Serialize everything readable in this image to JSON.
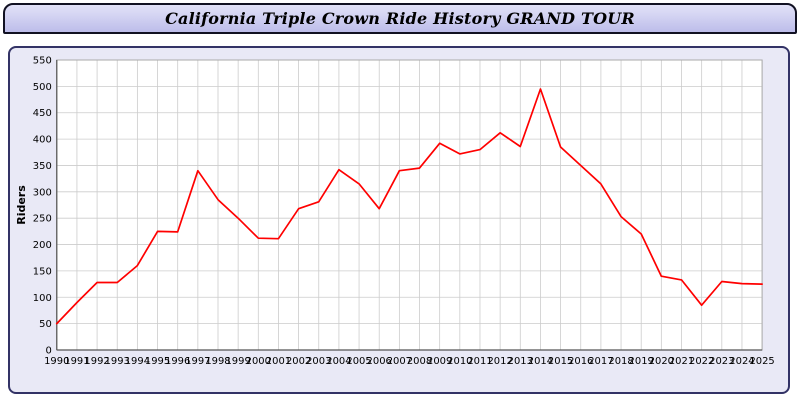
{
  "header": {
    "title": "California Triple Crown Ride History GRAND TOUR"
  },
  "colors": {
    "title_bar_bg": "#c9c9ee",
    "title_bar_border": "#111122",
    "panel_bg": "#e9e9f6",
    "panel_border": "#333366",
    "plot_bg": "#ffffff",
    "grid": "#cccccc",
    "axis": "#555555",
    "line": "#ff0000",
    "tick_text": "#000000"
  },
  "chart_data": {
    "type": "line",
    "title": "California Triple Crown Ride History GRAND TOUR",
    "xlabel": "",
    "ylabel": "Riders",
    "ylim": [
      0,
      550
    ],
    "ytick_step": 50,
    "yticks": [
      0,
      50,
      100,
      150,
      200,
      250,
      300,
      350,
      400,
      450,
      500,
      550
    ],
    "grid": true,
    "legend_position": "none",
    "categories": [
      "1990",
      "1991",
      "1992",
      "1993",
      "1994",
      "1995",
      "1996",
      "1997",
      "1998",
      "1999",
      "2000",
      "2001",
      "2002",
      "2003",
      "2004",
      "2005",
      "2006",
      "2007",
      "2008",
      "2009",
      "2010",
      "2011",
      "2012",
      "2013",
      "2014",
      "2015",
      "2016",
      "2017",
      "2018",
      "2019",
      "2020",
      "2021",
      "2022",
      "2023",
      "2024",
      "2025"
    ],
    "series": [
      {
        "name": "Riders",
        "color": "#ff0000",
        "values": [
          50,
          90,
          128,
          128,
          160,
          225,
          224,
          340,
          285,
          250,
          212,
          211,
          268,
          281,
          342,
          315,
          268,
          340,
          345,
          392,
          372,
          380,
          412,
          386,
          495,
          385,
          350,
          315,
          253,
          220,
          140,
          133,
          85,
          130,
          126,
          125
        ]
      }
    ]
  }
}
